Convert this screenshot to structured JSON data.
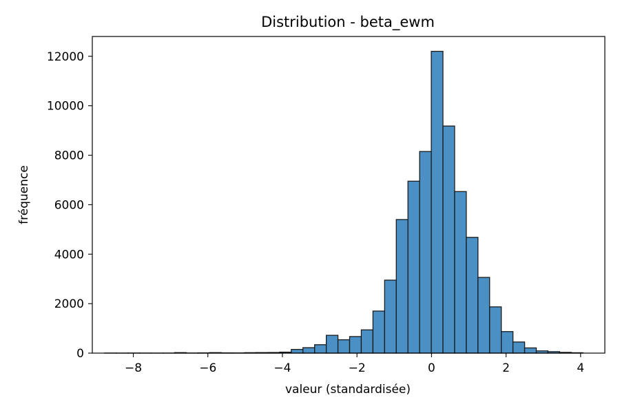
{
  "chart_data": {
    "type": "bar",
    "title": "Distribution - beta_ewm",
    "xlabel": "valeur (standardisée)",
    "ylabel": "fréquence",
    "xlim": [
      -9.1,
      4.65
    ],
    "ylim": [
      0,
      12800
    ],
    "xticks": [
      -8,
      -6,
      -4,
      -2,
      0,
      2,
      4
    ],
    "xtick_labels": [
      "−8",
      "−6",
      "−4",
      "−2",
      "0",
      "2",
      "4"
    ],
    "yticks": [
      0,
      2000,
      4000,
      6000,
      8000,
      10000,
      12000
    ],
    "ytick_labels": [
      "0",
      "2000",
      "4000",
      "6000",
      "8000",
      "10000",
      "12000"
    ],
    "bar_color": "#4a90c4",
    "edge_color": "#1a1a1a",
    "grid": false,
    "bin_width": 0.313,
    "bin_starts": [
      -8.77,
      -8.457,
      -8.144,
      -7.831,
      -7.518,
      -7.205,
      -6.892,
      -6.579,
      -6.266,
      -5.953,
      -5.64,
      -5.327,
      -5.014,
      -4.701,
      -4.388,
      -4.075,
      -3.762,
      -3.449,
      -3.136,
      -2.823,
      -2.51,
      -2.197,
      -1.884,
      -1.571,
      -1.258,
      -0.945,
      -0.632,
      -0.319,
      -0.006,
      0.307,
      0.62,
      0.933,
      1.246,
      1.559,
      1.872,
      2.185,
      2.498,
      2.811,
      3.124,
      3.437,
      3.75
    ],
    "values": [
      3,
      2,
      4,
      3,
      2,
      3,
      20,
      5,
      10,
      20,
      10,
      8,
      18,
      22,
      25,
      40,
      150,
      220,
      340,
      720,
      540,
      670,
      940,
      1700,
      2950,
      5400,
      6950,
      8150,
      12200,
      9180,
      6530,
      4680,
      3060,
      1870,
      870,
      450,
      210,
      90,
      60,
      30,
      15
    ]
  }
}
